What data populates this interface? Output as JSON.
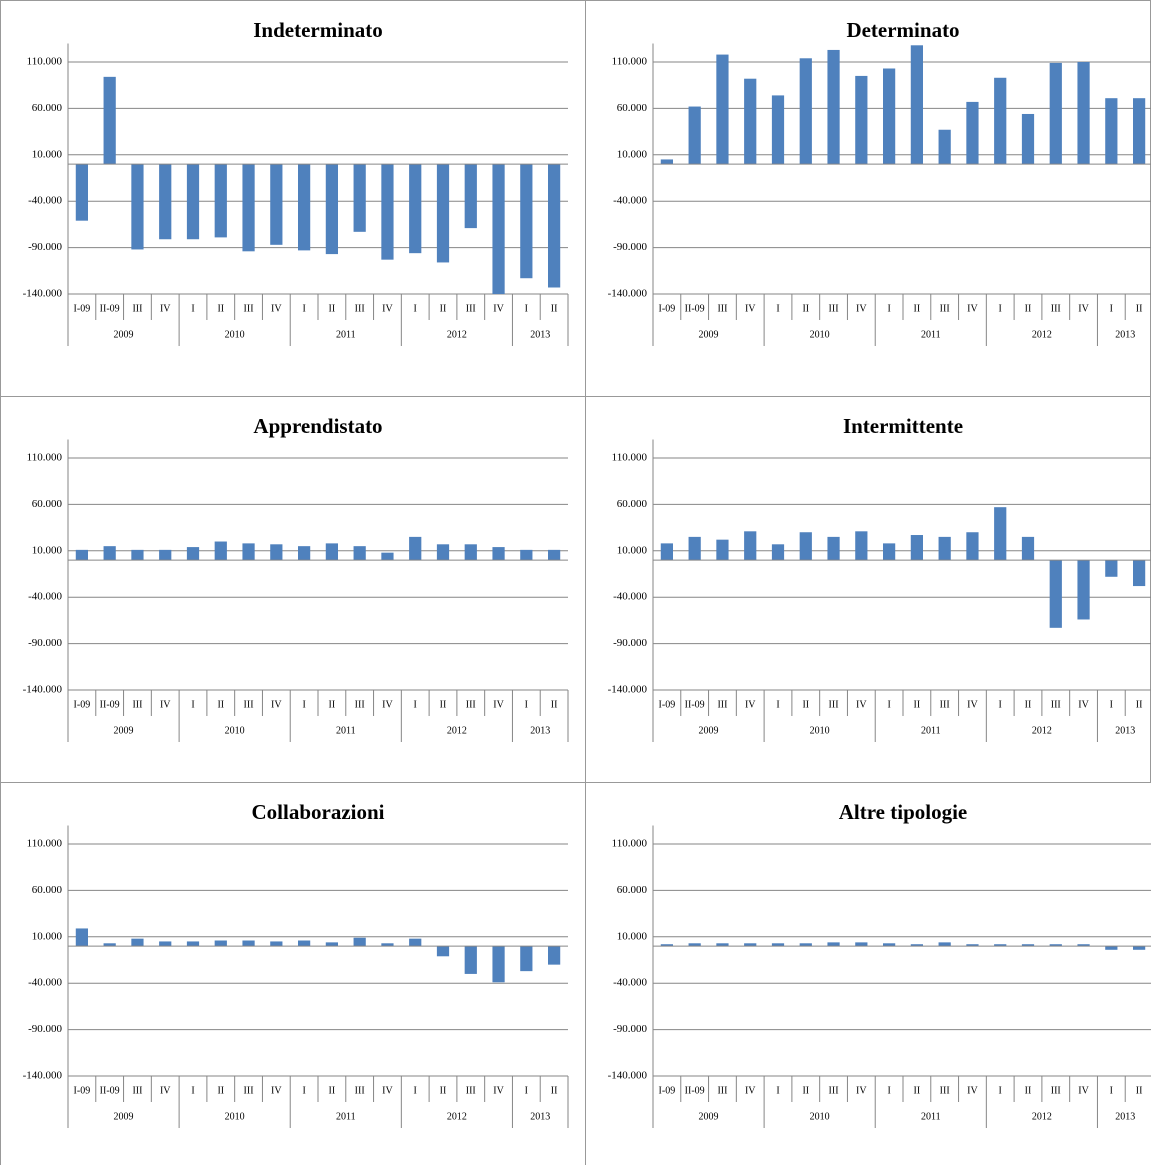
{
  "chart_data": [
    {
      "type": "bar",
      "title": "Indeterminato",
      "categories": [
        "I-09",
        "II-09",
        "III",
        "IV",
        "I",
        "II",
        "III",
        "IV",
        "I",
        "II",
        "III",
        "IV",
        "I",
        "II",
        "III",
        "IV",
        "I",
        "II"
      ],
      "years": [
        "2009",
        "2009",
        "2009",
        "2009",
        "2010",
        "2010",
        "2010",
        "2010",
        "2011",
        "2011",
        "2011",
        "2011",
        "2012",
        "2012",
        "2012",
        "2012",
        "2013",
        "2013"
      ],
      "values": [
        -61000,
        94000,
        -92000,
        -81000,
        -81000,
        -79000,
        -94000,
        -87000,
        -93000,
        -97000,
        -73000,
        -103000,
        -96000,
        -106000,
        -69000,
        -140000,
        -123000,
        -133000
      ],
      "color": "#4f81bd",
      "ylim": [
        -140000,
        130000
      ],
      "yticks": [
        {
          "value": -140000,
          "label": "-140.000"
        },
        {
          "value": -90000,
          "label": "-90.000"
        },
        {
          "value": -40000,
          "label": "-40.000"
        },
        {
          "value": 10000,
          "label": "10.000"
        },
        {
          "value": 60000,
          "label": "60.000"
        },
        {
          "value": 110000,
          "label": "110.000"
        }
      ],
      "grid": true
    },
    {
      "type": "bar",
      "title": "Determinato",
      "categories": [
        "I-09",
        "II-09",
        "III",
        "IV",
        "I",
        "II",
        "III",
        "IV",
        "I",
        "II",
        "III",
        "IV",
        "I",
        "II",
        "III",
        "IV",
        "I",
        "II"
      ],
      "years": [
        "2009",
        "2009",
        "2009",
        "2009",
        "2010",
        "2010",
        "2010",
        "2010",
        "2011",
        "2011",
        "2011",
        "2011",
        "2012",
        "2012",
        "2012",
        "2012",
        "2013",
        "2013"
      ],
      "values": [
        5000,
        62000,
        118000,
        92000,
        74000,
        114000,
        123000,
        95000,
        103000,
        128000,
        37000,
        67000,
        93000,
        54000,
        109000,
        110000,
        71000,
        71000
      ],
      "color": "#4f81bd",
      "ylim": [
        -140000,
        130000
      ],
      "yticks": [
        {
          "value": -140000,
          "label": "-140.000"
        },
        {
          "value": -90000,
          "label": "-90.000"
        },
        {
          "value": -40000,
          "label": "-40.000"
        },
        {
          "value": 10000,
          "label": "10.000"
        },
        {
          "value": 60000,
          "label": "60.000"
        },
        {
          "value": 110000,
          "label": "110.000"
        }
      ],
      "grid": true
    },
    {
      "type": "bar",
      "title": "Apprendistato",
      "categories": [
        "I-09",
        "II-09",
        "III",
        "IV",
        "I",
        "II",
        "III",
        "IV",
        "I",
        "II",
        "III",
        "IV",
        "I",
        "II",
        "III",
        "IV",
        "I",
        "II"
      ],
      "years": [
        "2009",
        "2009",
        "2009",
        "2009",
        "2010",
        "2010",
        "2010",
        "2010",
        "2011",
        "2011",
        "2011",
        "2011",
        "2012",
        "2012",
        "2012",
        "2012",
        "2013",
        "2013"
      ],
      "values": [
        11000,
        15000,
        11000,
        11000,
        14000,
        20000,
        18000,
        17000,
        15000,
        18000,
        15000,
        8000,
        25000,
        17000,
        17000,
        14000,
        11000,
        11000
      ],
      "color": "#4f81bd",
      "ylim": [
        -140000,
        130000
      ],
      "yticks": [
        {
          "value": -140000,
          "label": "-140.000"
        },
        {
          "value": -90000,
          "label": "-90.000"
        },
        {
          "value": -40000,
          "label": "-40.000"
        },
        {
          "value": 10000,
          "label": "10.000"
        },
        {
          "value": 60000,
          "label": "60.000"
        },
        {
          "value": 110000,
          "label": "110.000"
        }
      ],
      "grid": true
    },
    {
      "type": "bar",
      "title": "Intermittente",
      "categories": [
        "I-09",
        "II-09",
        "III",
        "IV",
        "I",
        "II",
        "III",
        "IV",
        "I",
        "II",
        "III",
        "IV",
        "I",
        "II",
        "III",
        "IV",
        "I",
        "II"
      ],
      "years": [
        "2009",
        "2009",
        "2009",
        "2009",
        "2010",
        "2010",
        "2010",
        "2010",
        "2011",
        "2011",
        "2011",
        "2011",
        "2012",
        "2012",
        "2012",
        "2012",
        "2013",
        "2013"
      ],
      "values": [
        18000,
        25000,
        22000,
        31000,
        17000,
        30000,
        25000,
        31000,
        18000,
        27000,
        25000,
        30000,
        57000,
        25000,
        -73000,
        -64000,
        -18000,
        -28000
      ],
      "color": "#4f81bd",
      "ylim": [
        -140000,
        130000
      ],
      "yticks": [
        {
          "value": -140000,
          "label": "-140.000"
        },
        {
          "value": -90000,
          "label": "-90.000"
        },
        {
          "value": -40000,
          "label": "-40.000"
        },
        {
          "value": 10000,
          "label": "10.000"
        },
        {
          "value": 60000,
          "label": "60.000"
        },
        {
          "value": 110000,
          "label": "110.000"
        }
      ],
      "grid": true
    },
    {
      "type": "bar",
      "title": "Collaborazioni",
      "categories": [
        "I-09",
        "II-09",
        "III",
        "IV",
        "I",
        "II",
        "III",
        "IV",
        "I",
        "II",
        "III",
        "IV",
        "I",
        "II",
        "III",
        "IV",
        "I",
        "II"
      ],
      "years": [
        "2009",
        "2009",
        "2009",
        "2009",
        "2010",
        "2010",
        "2010",
        "2010",
        "2011",
        "2011",
        "2011",
        "2011",
        "2012",
        "2012",
        "2012",
        "2012",
        "2013",
        "2013"
      ],
      "values": [
        19000,
        3000,
        8000,
        5000,
        5000,
        6000,
        6000,
        5000,
        6000,
        4000,
        9000,
        3000,
        8000,
        -11000,
        -30000,
        -39000,
        -27000,
        -20000
      ],
      "color": "#4f81bd",
      "ylim": [
        -140000,
        130000
      ],
      "yticks": [
        {
          "value": -140000,
          "label": "-140.000"
        },
        {
          "value": -90000,
          "label": "-90.000"
        },
        {
          "value": -40000,
          "label": "-40.000"
        },
        {
          "value": 10000,
          "label": "10.000"
        },
        {
          "value": 60000,
          "label": "60.000"
        },
        {
          "value": 110000,
          "label": "110.000"
        }
      ],
      "grid": true
    },
    {
      "type": "bar",
      "title": "Altre tipologie",
      "categories": [
        "I-09",
        "II-09",
        "III",
        "IV",
        "I",
        "II",
        "III",
        "IV",
        "I",
        "II",
        "III",
        "IV",
        "I",
        "II",
        "III",
        "IV",
        "I",
        "II"
      ],
      "years": [
        "2009",
        "2009",
        "2009",
        "2009",
        "2010",
        "2010",
        "2010",
        "2010",
        "2011",
        "2011",
        "2011",
        "2011",
        "2012",
        "2012",
        "2012",
        "2012",
        "2013",
        "2013"
      ],
      "values": [
        2000,
        3000,
        3000,
        3000,
        3000,
        3000,
        4000,
        4000,
        3000,
        2000,
        4000,
        2000,
        2000,
        2000,
        2000,
        2000,
        -4000,
        -4000
      ],
      "color": "#4f81bd",
      "ylim": [
        -140000,
        130000
      ],
      "yticks": [
        {
          "value": -140000,
          "label": "-140.000"
        },
        {
          "value": -90000,
          "label": "-90.000"
        },
        {
          "value": -40000,
          "label": "-40.000"
        },
        {
          "value": 10000,
          "label": "10.000"
        },
        {
          "value": 60000,
          "label": "60.000"
        },
        {
          "value": 110000,
          "label": "110.000"
        }
      ],
      "grid": true
    }
  ]
}
